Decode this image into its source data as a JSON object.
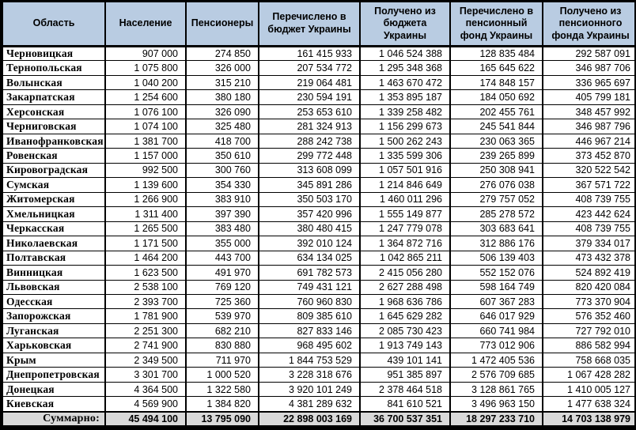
{
  "table": {
    "columns": [
      {
        "label": "Область"
      },
      {
        "label": "Население"
      },
      {
        "label": "Пенсионеры"
      },
      {
        "label": "Перечислено в бюджет Украины"
      },
      {
        "label": "Получено из бюджета Украины"
      },
      {
        "label": "Перечислено в пенсионный фонд Украины"
      },
      {
        "label": "Получено из пенсионного фонда Украины"
      }
    ],
    "rows": [
      [
        "Черновицкая",
        "907 000",
        "274 850",
        "161 415 933",
        "1 046 524 388",
        "128 835 484",
        "292 587 091"
      ],
      [
        "Тернопольская",
        "1 075 800",
        "326 000",
        "207 534 772",
        "1 295 348 368",
        "165 645 622",
        "346 987 706"
      ],
      [
        "Волынская",
        "1 040 200",
        "315 210",
        "219 064 481",
        "1 463 670 472",
        "174 848 157",
        "336 965 697"
      ],
      [
        "Закарпатская",
        "1 254 600",
        "380 180",
        "230 594 191",
        "1 353 895 187",
        "184 050 692",
        "405 799 181"
      ],
      [
        "Херсонская",
        "1 076 100",
        "326 090",
        "253 653 610",
        "1 339 258 482",
        "202 455 761",
        "348 457 992"
      ],
      [
        "Черниговская",
        "1 074 100",
        "325 480",
        "281 324 913",
        "1 156 299 673",
        "245 541 844",
        "346 987 796"
      ],
      [
        "Иванофранковская",
        "1 381 700",
        "418 700",
        "288 242 738",
        "1 500 262 243",
        "230 063 365",
        "446 967 214"
      ],
      [
        "Ровенская",
        "1 157 000",
        "350 610",
        "299 772 448",
        "1 335 599 306",
        "239 265 899",
        "373 452 870"
      ],
      [
        "Кировоградская",
        "992 500",
        "300 760",
        "313 608 099",
        "1 057 501 916",
        "250 308 941",
        "320 522 542"
      ],
      [
        "Сумская",
        "1 139 600",
        "354 330",
        "345 891 286",
        "1 214 846 649",
        "276 076 038",
        "367 571 722"
      ],
      [
        "Житомерская",
        "1 266 900",
        "383 910",
        "350 503 170",
        "1 460 011 296",
        "279 757 052",
        "408 739 755"
      ],
      [
        "Хмельницкая",
        "1 311 400",
        "397 390",
        "357 420 996",
        "1 555 149 877",
        "285 278 572",
        "423 442 624"
      ],
      [
        "Черкасская",
        "1 265 500",
        "383 480",
        "380 480 415",
        "1 247 779 078",
        "303 683 641",
        "408 739 755"
      ],
      [
        "Николаевская",
        "1 171 500",
        "355 000",
        "392 010 124",
        "1 364 872 716",
        "312 886 176",
        "379 334 017"
      ],
      [
        "Полтавская",
        "1 464 200",
        "443 700",
        "634 134 025",
        "1 042 865 211",
        "506 139 403",
        "473 432 378"
      ],
      [
        "Винницкая",
        "1 623 500",
        "491 970",
        "691 782 573",
        "2 415 056 280",
        "552 152 076",
        "524 892 419"
      ],
      [
        "Львовская",
        "2 538 100",
        "769 120",
        "749 431 121",
        "2 627 288 498",
        "598 164 749",
        "820 420 084"
      ],
      [
        "Одесская",
        "2 393 700",
        "725 360",
        "760 960 830",
        "1 968 636 786",
        "607 367 283",
        "773 370 904"
      ],
      [
        "Запорожская",
        "1 781 900",
        "539 970",
        "809 385 610",
        "1 645 629 282",
        "646 017 929",
        "576 352 460"
      ],
      [
        "Луганская",
        "2 251 300",
        "682 210",
        "827 833 146",
        "2 085 730 423",
        "660 741 984",
        "727 792 010"
      ],
      [
        "Харьковская",
        "2 741 900",
        "830 880",
        "968 495 602",
        "1 913 749 143",
        "773 012 906",
        "886 582 994"
      ],
      [
        "Крым",
        "2 349 500",
        "711 970",
        "1 844 753 529",
        "439 101 141",
        "1 472 405 536",
        "758 668 035"
      ],
      [
        "Днепропетровская",
        "3 301 700",
        "1 000 520",
        "3 228 318 676",
        "951 385 897",
        "2 576 709 685",
        "1 067 428 282"
      ],
      [
        "Донецкая",
        "4 364 500",
        "1 322 580",
        "3 920 101 249",
        "2 378 464 518",
        "3 128 861 765",
        "1 410 005 127"
      ],
      [
        "Киевская",
        "4 569 900",
        "1 384 820",
        "4 381 289 632",
        "841 610 521",
        "3 496 963 150",
        "1 477 638 324"
      ]
    ],
    "summary": [
      "Суммарно:",
      "45 494 100",
      "13 795 090",
      "22 898 003 169",
      "36 700 537 351",
      "18 297 233 710",
      "14 703 138 979"
    ]
  },
  "colors": {
    "header_bg": "#b9cce2",
    "summary_bg": "#d9d9d9",
    "border": "#000000",
    "body_bg": "#ffffff"
  }
}
